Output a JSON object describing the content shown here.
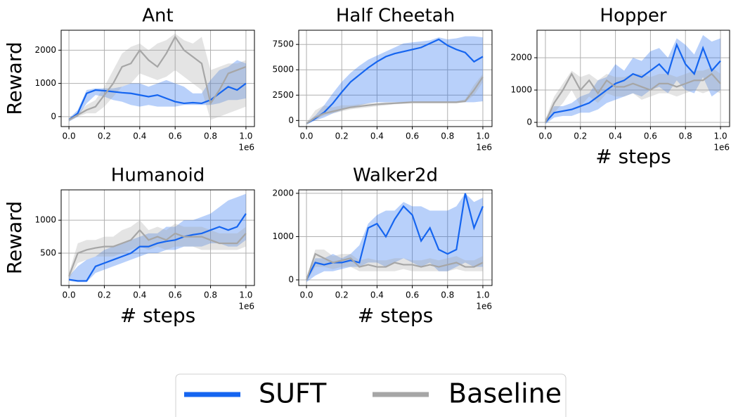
{
  "chart_data": [
    {
      "type": "line",
      "title": "Ant",
      "ylabel": "Reward",
      "x_offset_label": "1e6",
      "grid": true,
      "x": [
        0,
        0.05,
        0.1,
        0.15,
        0.2,
        0.25,
        0.3,
        0.35,
        0.4,
        0.45,
        0.5,
        0.55,
        0.6,
        0.65,
        0.7,
        0.75,
        0.8,
        0.85,
        0.9,
        0.95,
        1.0
      ],
      "xlim": [
        -0.044,
        1.048
      ],
      "ylim": [
        -300,
        2600
      ],
      "xticks": [
        {
          "value": 0,
          "label": "0.0"
        },
        {
          "value": 0.2,
          "label": "0.2"
        },
        {
          "value": 0.4,
          "label": "0.4"
        },
        {
          "value": 0.6,
          "label": "0.6"
        },
        {
          "value": 0.8,
          "label": "0.8"
        },
        {
          "value": 1.0,
          "label": "1.0"
        }
      ],
      "yticks": [
        0,
        1000,
        2000
      ],
      "series": [
        {
          "name": "SUFT",
          "color": "#1565f0",
          "values": [
            -100,
            100,
            700,
            800,
            780,
            750,
            720,
            700,
            650,
            600,
            650,
            550,
            450,
            400,
            420,
            400,
            500,
            700,
            900,
            800,
            1000
          ],
          "lower": [
            -150,
            0,
            400,
            650,
            600,
            500,
            450,
            350,
            300,
            350,
            300,
            300,
            300,
            350,
            350,
            350,
            350,
            400,
            500,
            500,
            550
          ],
          "upper": [
            -50,
            200,
            800,
            850,
            850,
            850,
            900,
            1000,
            1000,
            900,
            1000,
            1100,
            1000,
            900,
            700,
            700,
            1100,
            1400,
            1500,
            1700,
            1600
          ]
        },
        {
          "name": "Baseline",
          "color": "#a6a6a6",
          "values": [
            -100,
            50,
            200,
            300,
            650,
            1000,
            1500,
            1600,
            2000,
            1700,
            1500,
            1900,
            2400,
            2000,
            1800,
            1600,
            400,
            800,
            1300,
            1400,
            1500
          ],
          "lower": [
            -150,
            0,
            100,
            100,
            300,
            600,
            900,
            1000,
            1300,
            1200,
            1100,
            1200,
            1400,
            1200,
            1000,
            800,
            -100,
            0,
            100,
            200,
            300
          ],
          "upper": [
            -50,
            100,
            350,
            500,
            900,
            1400,
            1900,
            2100,
            2200,
            2000,
            2200,
            2300,
            2500,
            2300,
            2200,
            2400,
            1400,
            1500,
            1600,
            1600,
            1700
          ]
        }
      ]
    },
    {
      "type": "line",
      "title": "Half Cheetah",
      "x_offset_label": "1e6",
      "grid": true,
      "x": [
        0,
        0.05,
        0.1,
        0.15,
        0.2,
        0.25,
        0.3,
        0.35,
        0.4,
        0.45,
        0.5,
        0.55,
        0.6,
        0.65,
        0.7,
        0.75,
        0.8,
        0.85,
        0.9,
        0.95,
        1.0
      ],
      "xlim": [
        -0.044,
        1.052
      ],
      "ylim": [
        -600,
        8900
      ],
      "xticks": [
        {
          "value": 0,
          "label": "0.0"
        },
        {
          "value": 0.2,
          "label": "0.2"
        },
        {
          "value": 0.4,
          "label": "0.4"
        },
        {
          "value": 0.6,
          "label": "0.6"
        },
        {
          "value": 0.8,
          "label": "0.8"
        },
        {
          "value": 1.0,
          "label": "1.0"
        }
      ],
      "yticks": [
        0,
        2500,
        5000,
        7500
      ],
      "series": [
        {
          "name": "SUFT",
          "color": "#1565f0",
          "values": [
            -300,
            200,
            800,
            1700,
            2800,
            3800,
            4500,
            5200,
            5800,
            6300,
            6600,
            6800,
            7000,
            7200,
            7600,
            8000,
            7400,
            7000,
            6700,
            5800,
            6300
          ],
          "lower": [
            -400,
            0,
            300,
            700,
            1000,
            1300,
            1500,
            1700,
            1800,
            1800,
            1800,
            1800,
            1800,
            1800,
            1800,
            1800,
            1800,
            1800,
            1800,
            1800,
            1900
          ],
          "upper": [
            -200,
            500,
            1500,
            2700,
            3800,
            4700,
            5400,
            6000,
            6400,
            6800,
            7200,
            7600,
            7700,
            7800,
            7900,
            8200,
            8000,
            8100,
            8300,
            8300,
            8200
          ]
        },
        {
          "name": "Baseline",
          "color": "#a6a6a6",
          "values": [
            -300,
            300,
            700,
            900,
            1100,
            1300,
            1400,
            1500,
            1600,
            1650,
            1700,
            1750,
            1800,
            1800,
            1800,
            1800,
            1800,
            1800,
            1900,
            3000,
            4300
          ],
          "lower": [
            -400,
            100,
            500,
            700,
            900,
            1100,
            1200,
            1300,
            1400,
            1500,
            1600,
            1650,
            1700,
            1700,
            1700,
            1700,
            1700,
            1700,
            1800,
            2500,
            3800
          ],
          "upper": [
            -200,
            1000,
            1500,
            1300,
            1500,
            1500,
            1600,
            1700,
            1700,
            1800,
            1800,
            1850,
            1900,
            1900,
            1900,
            1900,
            1900,
            1900,
            2100,
            3500,
            4600
          ]
        }
      ]
    },
    {
      "type": "line",
      "title": "Hopper",
      "xlabel": "# steps",
      "x_offset_label": "1e6",
      "grid": true,
      "x": [
        0,
        0.05,
        0.1,
        0.15,
        0.2,
        0.25,
        0.3,
        0.35,
        0.4,
        0.45,
        0.5,
        0.55,
        0.6,
        0.65,
        0.7,
        0.75,
        0.8,
        0.85,
        0.9,
        0.95,
        1.0
      ],
      "xlim": [
        -0.048,
        1.052
      ],
      "ylim": [
        -130,
        2850
      ],
      "xticks": [
        {
          "value": 0,
          "label": "0.0"
        },
        {
          "value": 0.2,
          "label": "0.2"
        },
        {
          "value": 0.4,
          "label": "0.4"
        },
        {
          "value": 0.6,
          "label": "0.6"
        },
        {
          "value": 0.8,
          "label": "0.8"
        },
        {
          "value": 1.0,
          "label": "1.0"
        }
      ],
      "yticks": [
        0,
        1000,
        2000
      ],
      "series": [
        {
          "name": "SUFT",
          "color": "#1565f0",
          "values": [
            0,
            300,
            350,
            400,
            500,
            600,
            800,
            1000,
            1200,
            1300,
            1500,
            1400,
            1600,
            1800,
            1500,
            2400,
            1800,
            1500,
            2300,
            1600,
            1900
          ],
          "lower": [
            -50,
            150,
            200,
            200,
            300,
            300,
            400,
            600,
            700,
            800,
            900,
            800,
            1000,
            1100,
            900,
            1300,
            1000,
            900,
            1400,
            800,
            1000
          ],
          "upper": [
            100,
            500,
            500,
            600,
            800,
            900,
            1300,
            1400,
            1800,
            1600,
            2000,
            1900,
            2200,
            2300,
            2000,
            2600,
            2400,
            2100,
            2700,
            2500,
            2600
          ]
        },
        {
          "name": "Baseline",
          "color": "#a6a6a6",
          "values": [
            0,
            600,
            1000,
            1500,
            1000,
            1300,
            900,
            1300,
            1100,
            1100,
            1200,
            1100,
            1000,
            1200,
            1200,
            1100,
            1200,
            1300,
            1300,
            1500,
            1200
          ],
          "lower": [
            -50,
            300,
            600,
            1000,
            500,
            800,
            600,
            900,
            800,
            800,
            900,
            700,
            800,
            900,
            900,
            800,
            900,
            1000,
            900,
            1000,
            900
          ],
          "upper": [
            100,
            800,
            1200,
            1600,
            1400,
            1500,
            1300,
            1500,
            1400,
            1400,
            1500,
            1500,
            1400,
            1500,
            1500,
            1400,
            1500,
            1600,
            1600,
            1700,
            1500
          ]
        }
      ]
    },
    {
      "type": "line",
      "title": "Humanoid",
      "ylabel": "Reward",
      "xlabel": "# steps",
      "x_offset_label": "1e6",
      "grid": true,
      "x": [
        0,
        0.05,
        0.1,
        0.15,
        0.2,
        0.25,
        0.3,
        0.35,
        0.4,
        0.45,
        0.5,
        0.55,
        0.6,
        0.65,
        0.7,
        0.75,
        0.8,
        0.85,
        0.9,
        0.95,
        1.0
      ],
      "xlim": [
        -0.044,
        1.048
      ],
      "ylim": [
        10,
        1460
      ],
      "xticks": [
        {
          "value": 0,
          "label": "0.0"
        },
        {
          "value": 0.2,
          "label": "0.2"
        },
        {
          "value": 0.4,
          "label": "0.4"
        },
        {
          "value": 0.6,
          "label": "0.6"
        },
        {
          "value": 0.8,
          "label": "0.8"
        },
        {
          "value": 1.0,
          "label": "1.0"
        }
      ],
      "yticks": [
        500,
        1000
      ],
      "series": [
        {
          "name": "SUFT",
          "color": "#1565f0",
          "values": [
            100,
            80,
            80,
            300,
            350,
            400,
            450,
            500,
            600,
            600,
            650,
            680,
            700,
            750,
            780,
            800,
            850,
            900,
            850,
            900,
            1100
          ],
          "lower": [
            80,
            60,
            60,
            200,
            250,
            300,
            350,
            400,
            450,
            500,
            500,
            550,
            550,
            600,
            600,
            600,
            650,
            650,
            600,
            600,
            700
          ],
          "upper": [
            150,
            300,
            400,
            450,
            550,
            600,
            650,
            700,
            750,
            800,
            800,
            900,
            900,
            1000,
            1000,
            1050,
            1100,
            1200,
            1300,
            1350,
            1400
          ]
        },
        {
          "name": "Baseline",
          "color": "#a6a6a6",
          "values": [
            150,
            500,
            550,
            580,
            600,
            600,
            650,
            700,
            850,
            700,
            750,
            700,
            800,
            750,
            750,
            750,
            700,
            650,
            650,
            650,
            800
          ],
          "lower": [
            100,
            350,
            400,
            450,
            450,
            450,
            500,
            550,
            600,
            550,
            600,
            550,
            600,
            600,
            600,
            550,
            550,
            550,
            550,
            550,
            600
          ],
          "upper": [
            200,
            650,
            700,
            700,
            750,
            750,
            850,
            900,
            1000,
            850,
            900,
            850,
            950,
            900,
            900,
            900,
            850,
            800,
            800,
            800,
            900
          ]
        }
      ]
    },
    {
      "type": "line",
      "title": "Walker2d",
      "xlabel": "# steps",
      "x_offset_label": "1e6",
      "grid": true,
      "x": [
        0,
        0.05,
        0.1,
        0.15,
        0.2,
        0.25,
        0.3,
        0.35,
        0.4,
        0.45,
        0.5,
        0.55,
        0.6,
        0.65,
        0.7,
        0.75,
        0.8,
        0.85,
        0.9,
        0.95,
        1.0
      ],
      "xlim": [
        -0.044,
        1.052
      ],
      "ylim": [
        -130,
        2080
      ],
      "xticks": [
        {
          "value": 0,
          "label": "0.0"
        },
        {
          "value": 0.2,
          "label": "0.2"
        },
        {
          "value": 0.4,
          "label": "0.4"
        },
        {
          "value": 0.6,
          "label": "0.6"
        },
        {
          "value": 0.8,
          "label": "0.8"
        },
        {
          "value": 1.0,
          "label": "1.0"
        }
      ],
      "yticks": [
        0,
        1000,
        2000
      ],
      "series": [
        {
          "name": "SUFT",
          "color": "#1565f0",
          "values": [
            0,
            400,
            350,
            400,
            400,
            450,
            400,
            1200,
            1300,
            1000,
            1400,
            1700,
            1500,
            900,
            1200,
            700,
            600,
            700,
            2000,
            1200,
            1700
          ],
          "lower": [
            -50,
            100,
            200,
            200,
            250,
            300,
            300,
            400,
            400,
            300,
            400,
            500,
            400,
            300,
            400,
            200,
            200,
            300,
            400,
            300,
            300
          ],
          "upper": [
            50,
            500,
            500,
            600,
            500,
            600,
            800,
            1300,
            1500,
            1600,
            1600,
            1800,
            1700,
            1700,
            1600,
            1600,
            1600,
            1700,
            2000,
            1800,
            1900
          ]
        },
        {
          "name": "Baseline",
          "color": "#a6a6a6",
          "values": [
            0,
            600,
            500,
            400,
            450,
            500,
            300,
            350,
            300,
            300,
            400,
            350,
            350,
            300,
            350,
            300,
            350,
            400,
            300,
            300,
            400
          ],
          "lower": [
            -50,
            300,
            300,
            250,
            300,
            300,
            200,
            200,
            200,
            200,
            200,
            250,
            200,
            200,
            200,
            200,
            200,
            250,
            200,
            200,
            200
          ],
          "upper": [
            50,
            700,
            700,
            550,
            600,
            600,
            450,
            500,
            450,
            450,
            500,
            500,
            450,
            450,
            500,
            450,
            500,
            550,
            450,
            450,
            550
          ]
        }
      ]
    }
  ]
}
